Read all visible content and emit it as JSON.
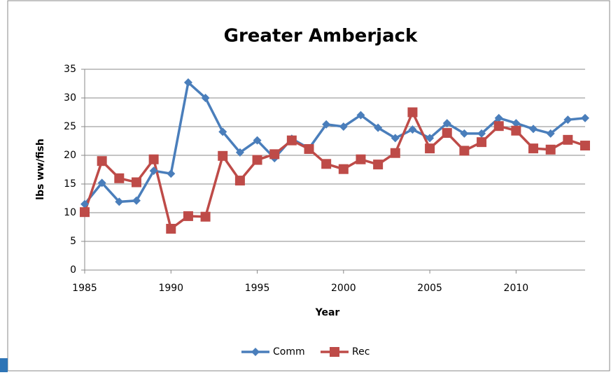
{
  "chart_data": {
    "type": "line",
    "title": "Greater Amberjack",
    "x_label": "Year",
    "y_label": "lbs ww/fish",
    "x": [
      1985,
      1986,
      1987,
      1988,
      1989,
      1990,
      1991,
      1992,
      1993,
      1994,
      1995,
      1996,
      1997,
      1998,
      1999,
      2000,
      2001,
      2002,
      2003,
      2004,
      2005,
      2006,
      2007,
      2008,
      2009,
      2010,
      2011,
      2012,
      2013,
      2014
    ],
    "series": [
      {
        "name": "Comm",
        "color": "#4a7ebb",
        "marker": "diamond",
        "values": [
          11.5,
          15.2,
          11.9,
          12.1,
          17.3,
          16.8,
          32.7,
          30.0,
          24.1,
          20.5,
          22.6,
          19.5,
          22.9,
          21.2,
          25.4,
          25.0,
          27.0,
          24.8,
          23.0,
          24.5,
          23.0,
          25.6,
          23.8,
          23.8,
          26.5,
          25.6,
          24.6,
          23.8,
          26.2,
          26.5
        ]
      },
      {
        "name": "Rec",
        "color": "#be4b48",
        "marker": "square",
        "values": [
          10.1,
          19.0,
          16.0,
          15.3,
          19.3,
          7.2,
          9.4,
          9.3,
          19.9,
          15.6,
          19.2,
          20.2,
          22.6,
          21.1,
          18.5,
          17.6,
          19.3,
          18.4,
          20.4,
          27.5,
          21.2,
          23.9,
          20.8,
          22.3,
          25.1,
          24.3,
          21.2,
          21.0,
          22.7,
          21.7
        ]
      }
    ],
    "xlim": [
      1985,
      2014
    ],
    "xticks": [
      1985,
      1990,
      1995,
      2000,
      2005,
      2010
    ],
    "ylim": [
      0,
      35
    ],
    "yticks": [
      0,
      5,
      10,
      15,
      20,
      25,
      30,
      35
    ],
    "grid": true,
    "legend": "bottom"
  }
}
